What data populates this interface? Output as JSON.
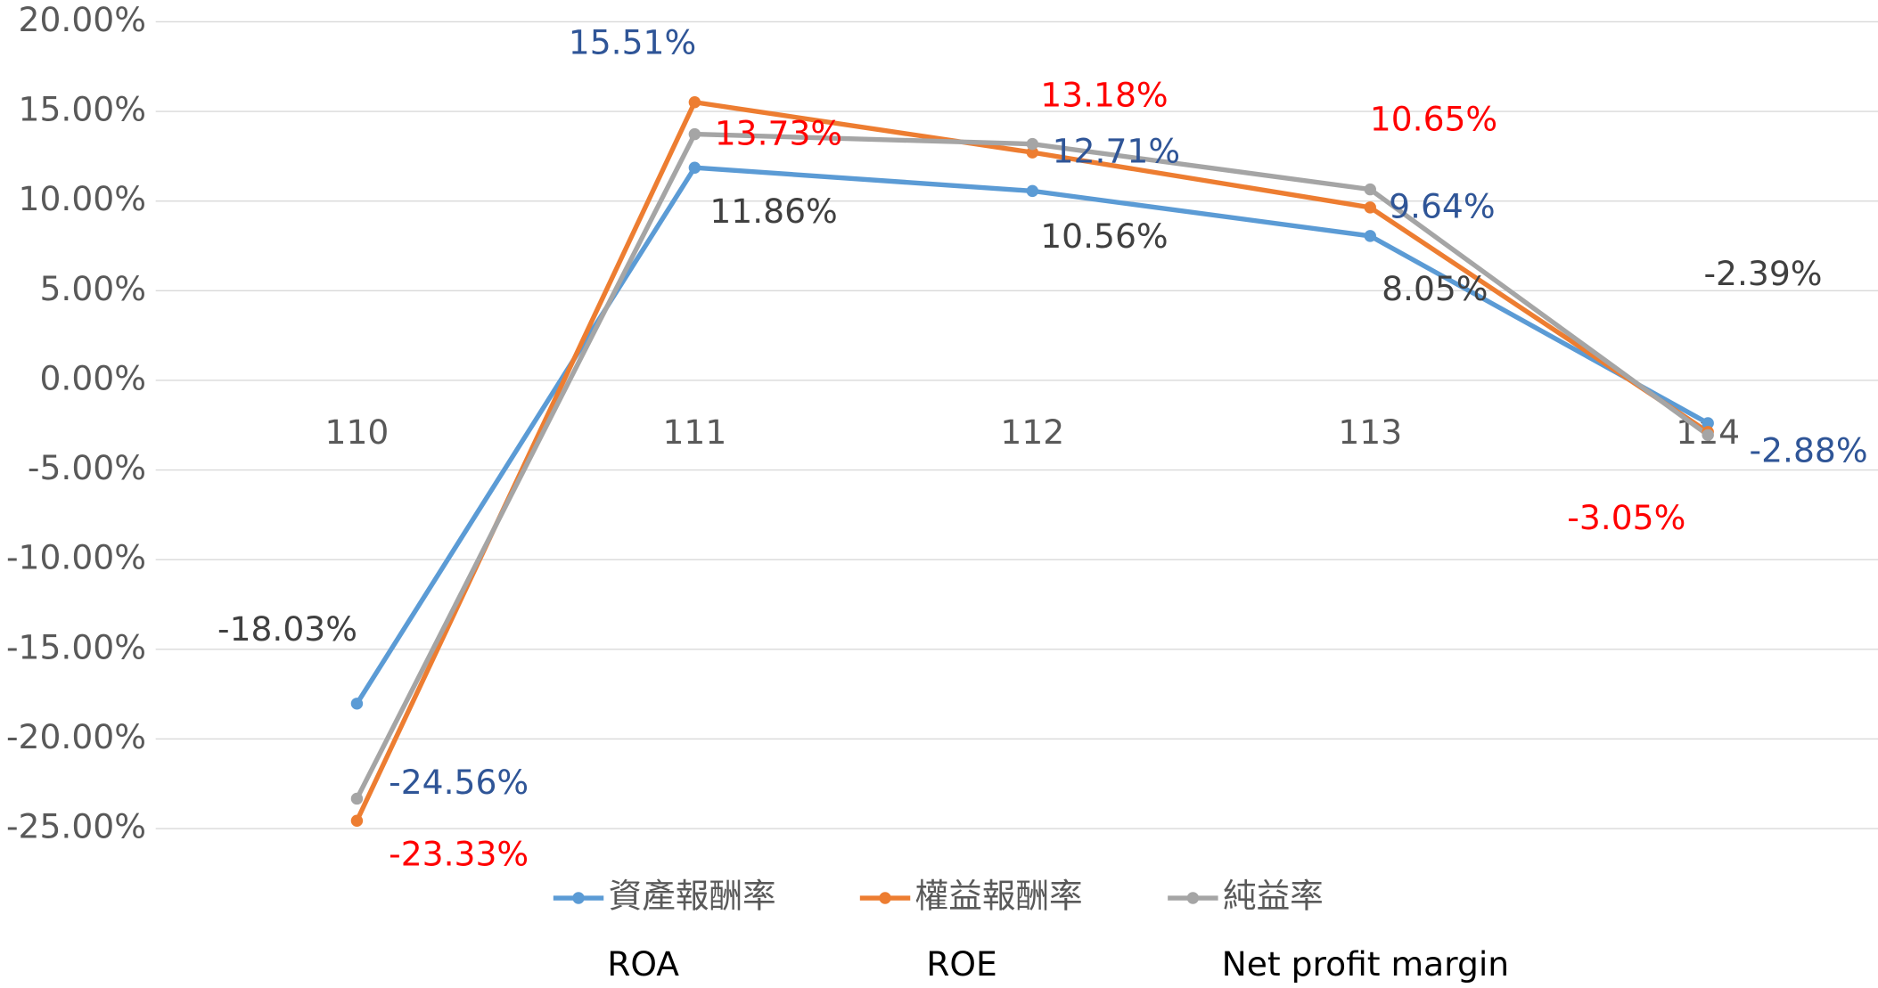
{
  "chart_data": {
    "type": "line",
    "categories": [
      "110",
      "111",
      "112",
      "113",
      "114"
    ],
    "series": [
      {
        "name": "資產報酬率",
        "color": "#5b9bd5",
        "label_color": "#404040",
        "values": [
          -18.03,
          11.86,
          10.56,
          8.05,
          -2.39
        ],
        "value_labels": [
          "-18.03%",
          "11.86%",
          "10.56%",
          "8.05%",
          "-2.39%"
        ]
      },
      {
        "name": "權益報酬率",
        "color": "#ed7d31",
        "label_color": "#2f5597",
        "values": [
          -24.56,
          15.51,
          12.71,
          9.64,
          -2.88
        ],
        "value_labels": [
          "-24.56%",
          "15.51%",
          "12.71%",
          "9.64%",
          "-2.88%"
        ]
      },
      {
        "name": "純益率",
        "color": "#a5a5a5",
        "label_color": "#ff0000",
        "values": [
          -23.33,
          13.73,
          13.18,
          10.65,
          -3.05
        ],
        "value_labels": [
          "-23.33%",
          "13.73%",
          "13.18%",
          "10.65%",
          "-3.05%"
        ]
      }
    ],
    "annotations": [
      "ROA",
      "ROE",
      "Net profit margin"
    ],
    "ylim": [
      -25,
      20
    ],
    "yticks": [
      {
        "value": -25,
        "label": "-25.00%"
      },
      {
        "value": -20,
        "label": "-20.00%"
      },
      {
        "value": -15,
        "label": "-15.00%"
      },
      {
        "value": -10,
        "label": "-10.00%"
      },
      {
        "value": -5,
        "label": "-5.00%"
      },
      {
        "value": 0,
        "label": "0.00%"
      },
      {
        "value": 5,
        "label": "5.00%"
      },
      {
        "value": 10,
        "label": "10.00%"
      },
      {
        "value": 15,
        "label": "15.00%"
      },
      {
        "value": 20,
        "label": "20.00%"
      }
    ],
    "grid": true,
    "legend": "bottom"
  }
}
